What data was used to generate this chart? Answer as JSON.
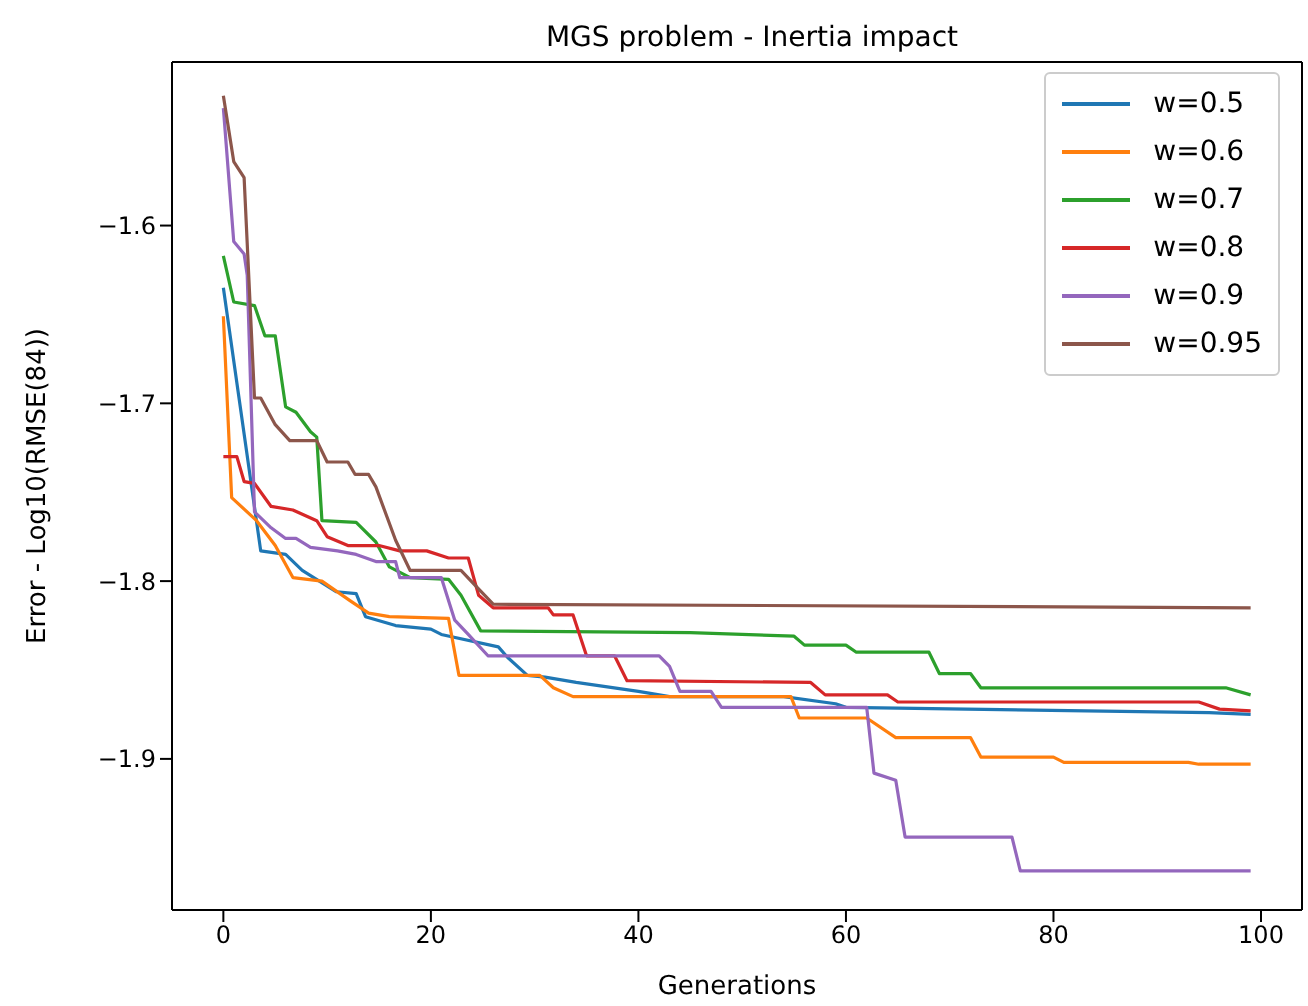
{
  "chart_data": {
    "type": "line",
    "title": "MGS problem - Inertia impact",
    "xlabel": "Generations",
    "ylabel": "Error - Log10(RMSE(84))",
    "xlim": [
      -4.95,
      103.95
    ],
    "ylim": [
      -1.985,
      -1.508
    ],
    "xticks": [
      0,
      20,
      40,
      60,
      80,
      100
    ],
    "yticks": [
      {
        "value": -1.9,
        "label": "−1.9"
      },
      {
        "value": -1.8,
        "label": "−1.8"
      },
      {
        "value": -1.7,
        "label": "−1.7"
      },
      {
        "value": -1.6,
        "label": "−1.6"
      }
    ],
    "grid": false,
    "legend": "top right",
    "series": [
      {
        "name": "w=0.5",
        "color": "#1f77b4",
        "x": [
          0,
          3.6,
          6,
          7.6,
          10.9,
          12.8,
          13.7,
          16.6,
          20,
          21,
          26.5,
          27.4,
          29.3,
          31,
          34,
          40,
          43,
          54,
          59,
          60,
          95,
          99
        ],
        "values": [
          -1.635,
          -1.783,
          -1.785,
          -1.794,
          -1.806,
          -1.807,
          -1.82,
          -1.825,
          -1.827,
          -1.83,
          -1.837,
          -1.843,
          -1.853,
          -1.854,
          -1.857,
          -1.862,
          -1.865,
          -1.865,
          -1.869,
          -1.871,
          -1.874,
          -1.875
        ]
      },
      {
        "name": "w=0.6",
        "color": "#ff7f0e",
        "x": [
          0,
          0.8,
          3.2,
          5,
          6.7,
          9.5,
          12.2,
          14,
          16,
          21.7,
          22.7,
          30.5,
          31.8,
          33.7,
          54.7,
          55.5,
          62,
          64.8,
          72,
          73,
          80,
          81,
          93,
          94,
          99
        ],
        "values": [
          -1.651,
          -1.753,
          -1.766,
          -1.78,
          -1.798,
          -1.8,
          -1.811,
          -1.818,
          -1.82,
          -1.821,
          -1.853,
          -1.853,
          -1.86,
          -1.865,
          -1.865,
          -1.877,
          -1.877,
          -1.888,
          -1.888,
          -1.899,
          -1.899,
          -1.902,
          -1.902,
          -1.903,
          -1.903
        ]
      },
      {
        "name": "w=0.7",
        "color": "#2ca02c",
        "x": [
          0,
          1,
          3,
          4,
          5,
          6,
          7,
          8.4,
          9,
          9.5,
          12.8,
          14.7,
          16,
          18,
          21.7,
          22.9,
          24.8,
          45,
          55,
          56,
          60,
          61,
          68,
          69,
          72,
          73,
          96.6,
          99
        ],
        "values": [
          -1.617,
          -1.643,
          -1.645,
          -1.662,
          -1.662,
          -1.702,
          -1.705,
          -1.716,
          -1.719,
          -1.766,
          -1.767,
          -1.778,
          -1.792,
          -1.798,
          -1.799,
          -1.808,
          -1.828,
          -1.829,
          -1.831,
          -1.836,
          -1.836,
          -1.84,
          -1.84,
          -1.852,
          -1.852,
          -1.86,
          -1.86,
          -1.864
        ]
      },
      {
        "name": "w=0.8",
        "color": "#d62728",
        "x": [
          0,
          1.3,
          2,
          3,
          4.6,
          6.7,
          9,
          10,
          12,
          15,
          17,
          19.6,
          21.7,
          23.6,
          24.6,
          26,
          31.3,
          31.8,
          33.7,
          35,
          37.7,
          38.9,
          56.6,
          58,
          64,
          65,
          94,
          96,
          99
        ],
        "values": [
          -1.73,
          -1.73,
          -1.744,
          -1.745,
          -1.758,
          -1.76,
          -1.766,
          -1.775,
          -1.78,
          -1.78,
          -1.783,
          -1.783,
          -1.787,
          -1.787,
          -1.808,
          -1.815,
          -1.815,
          -1.819,
          -1.819,
          -1.842,
          -1.842,
          -1.856,
          -1.857,
          -1.864,
          -1.864,
          -1.868,
          -1.868,
          -1.872,
          -1.873
        ]
      },
      {
        "name": "w=0.9",
        "color": "#9467bd",
        "x": [
          0,
          1,
          2,
          2.3,
          3,
          4.6,
          6,
          7,
          8.4,
          11,
          12.8,
          14.7,
          16.6,
          17,
          21,
          22.3,
          23.6,
          25.5,
          42,
          43,
          44,
          47,
          48,
          62,
          62.7,
          64.8,
          65.7,
          76,
          76.8,
          99
        ],
        "values": [
          -1.534,
          -1.609,
          -1.616,
          -1.628,
          -1.761,
          -1.77,
          -1.776,
          -1.776,
          -1.781,
          -1.783,
          -1.785,
          -1.789,
          -1.789,
          -1.798,
          -1.798,
          -1.822,
          -1.83,
          -1.842,
          -1.842,
          -1.848,
          -1.862,
          -1.862,
          -1.871,
          -1.871,
          -1.908,
          -1.912,
          -1.944,
          -1.944,
          -1.963,
          -1.963
        ]
      },
      {
        "name": "w=0.95",
        "color": "#8c564b",
        "x": [
          0,
          1,
          2,
          3,
          3.6,
          5,
          6.4,
          9,
          10,
          12,
          12.7,
          14,
          14.7,
          16.6,
          18,
          22.9,
          24.2,
          26,
          99
        ],
        "values": [
          -1.527,
          -1.564,
          -1.573,
          -1.697,
          -1.697,
          -1.712,
          -1.721,
          -1.721,
          -1.733,
          -1.733,
          -1.74,
          -1.74,
          -1.747,
          -1.777,
          -1.794,
          -1.794,
          -1.802,
          -1.813,
          -1.815
        ]
      }
    ]
  }
}
